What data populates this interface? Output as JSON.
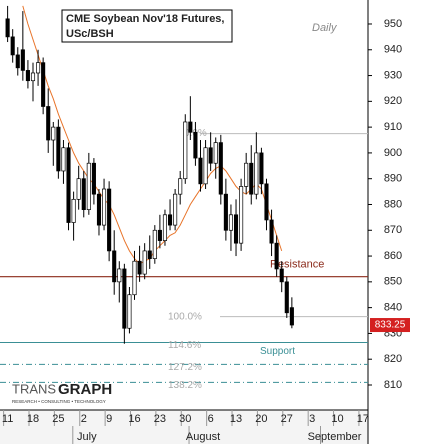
{
  "chart_data": {
    "type": "candlestick",
    "title": "CME Soybean Nov'18 Futures,",
    "subtitle": "USc/BSH",
    "period": "Daily",
    "logo": {
      "name_part1": "TRANS",
      "name_part2": "GRAPH",
      "tagline": "RESEARCH • CONSULTING • TECHNOLOGY"
    },
    "ylim": [
      800.3,
      959.3
    ],
    "yticks": [
      810,
      820,
      830,
      840,
      850,
      860,
      870,
      880,
      890,
      900,
      910,
      920,
      930,
      940,
      950
    ],
    "xlim": [
      -1.5,
      71
    ],
    "xticks": [
      {
        "value": 0,
        "label": "11"
      },
      {
        "value": 5,
        "label": "18"
      },
      {
        "value": 10,
        "label": "25"
      },
      {
        "value": 15,
        "label": "2"
      },
      {
        "value": 20,
        "label": "9"
      },
      {
        "value": 25,
        "label": "16"
      },
      {
        "value": 30,
        "label": "23"
      },
      {
        "value": 35,
        "label": "30"
      },
      {
        "value": 40,
        "label": "6"
      },
      {
        "value": 45,
        "label": "13"
      },
      {
        "value": 50,
        "label": "20"
      },
      {
        "value": 55,
        "label": "27"
      },
      {
        "value": 60,
        "label": "3"
      },
      {
        "value": 65,
        "label": "10"
      },
      {
        "value": 70,
        "label": "17"
      }
    ],
    "month_ticks": [
      {
        "value": 15.6,
        "label": "July"
      },
      {
        "value": 38.5,
        "label": "August"
      },
      {
        "value": 64.4,
        "label": "September"
      }
    ],
    "up_color": "#ffffff",
    "down_color": "#000000",
    "open": [
      952,
      945,
      938,
      940,
      932,
      928,
      931,
      935,
      918,
      905,
      910,
      893,
      902,
      873,
      882,
      890,
      878,
      896,
      884,
      872,
      886,
      862,
      850,
      855,
      832,
      845,
      858,
      853,
      862,
      859,
      870,
      866,
      876,
      872,
      884,
      890,
      912,
      908,
      898,
      888,
      902,
      896,
      904,
      884,
      870,
      876,
      865,
      887,
      896,
      884,
      900,
      888,
      874,
      865,
      855,
      850,
      840
    ],
    "high": [
      957,
      948,
      941,
      955,
      936,
      935,
      940,
      937,
      925,
      912,
      913,
      905,
      904,
      885,
      895,
      893,
      900,
      898,
      886,
      890,
      889,
      870,
      858,
      857,
      848,
      862,
      864,
      865,
      868,
      872,
      876,
      878,
      882,
      886,
      893,
      915,
      922,
      912,
      905,
      905,
      908,
      906,
      907,
      890,
      880,
      882,
      890,
      900,
      903,
      908,
      902,
      890,
      878,
      868,
      858,
      852,
      844
    ],
    "low": [
      943,
      935,
      930,
      928,
      925,
      920,
      926,
      915,
      900,
      895,
      890,
      888,
      870,
      866,
      878,
      875,
      876,
      880,
      868,
      870,
      858,
      845,
      842,
      826,
      830,
      843,
      850,
      851,
      855,
      857,
      863,
      864,
      870,
      870,
      880,
      888,
      905,
      895,
      885,
      886,
      893,
      890,
      880,
      866,
      862,
      860,
      862,
      884,
      880,
      882,
      884,
      870,
      860,
      852,
      846,
      836,
      832
    ],
    "close": [
      945,
      938,
      933,
      932,
      928,
      931,
      935,
      918,
      905,
      910,
      893,
      902,
      873,
      882,
      890,
      878,
      896,
      884,
      872,
      886,
      862,
      850,
      855,
      832,
      845,
      858,
      853,
      862,
      859,
      870,
      866,
      876,
      872,
      884,
      890,
      912,
      908,
      898,
      888,
      902,
      896,
      904,
      884,
      870,
      876,
      865,
      887,
      896,
      884,
      900,
      888,
      874,
      865,
      855,
      850,
      838,
      833.25
    ],
    "moving_average": {
      "color": "#e8742a",
      "values": [
        null,
        null,
        null,
        957,
        950,
        944,
        938,
        932,
        926,
        921,
        915,
        910,
        905,
        900,
        896,
        893,
        890,
        888,
        885,
        882,
        880,
        876,
        871,
        866,
        862,
        859,
        857,
        858,
        859,
        862,
        864,
        866,
        868,
        869,
        872,
        876,
        880,
        883,
        886,
        889,
        892,
        894,
        895,
        893,
        890,
        887,
        885,
        884,
        886,
        888,
        886,
        880,
        874,
        868,
        862,
        null,
        null
      ]
    },
    "resistance": {
      "label": "Resistance",
      "value": 852,
      "color": "#8b2a1a"
    },
    "support": {
      "label": "Support",
      "value": 826.5,
      "color": "#3a8f95"
    },
    "fib_levels": [
      {
        "label": "0.0%",
        "value": 907.5
      },
      {
        "label": "100.0%",
        "value": 836.5
      },
      {
        "label": "114.6%",
        "value": 826.5
      },
      {
        "label": "127.2%",
        "value": 818
      },
      {
        "label": "138.2%",
        "value": 811
      }
    ],
    "last_price": 833.25
  }
}
